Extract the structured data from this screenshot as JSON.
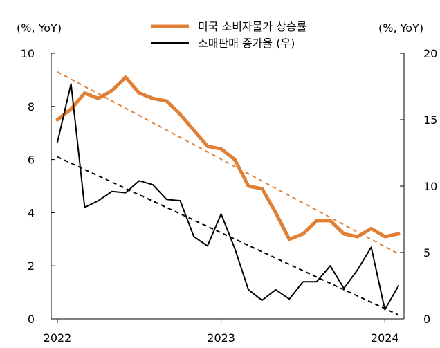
{
  "chart_data": {
    "type": "line",
    "left_unit_label": "(%, YoY)",
    "right_unit_label": "(%, YoY)",
    "y_left": {
      "min": 0,
      "max": 10,
      "ticks": [
        0,
        2,
        4,
        6,
        8,
        10
      ]
    },
    "y_right": {
      "min": 0,
      "max": 20,
      "ticks": [
        0,
        5,
        10,
        15,
        20
      ]
    },
    "x_ticks": [
      {
        "label": "2022",
        "month": "2022-01"
      },
      {
        "label": "2023",
        "month": "2023-01"
      },
      {
        "label": "2024",
        "month": "2024-01"
      }
    ],
    "x_months": [
      "2022-01",
      "2022-02",
      "2022-03",
      "2022-04",
      "2022-05",
      "2022-06",
      "2022-07",
      "2022-08",
      "2022-09",
      "2022-10",
      "2022-11",
      "2022-12",
      "2023-01",
      "2023-02",
      "2023-03",
      "2023-04",
      "2023-05",
      "2023-06",
      "2023-07",
      "2023-08",
      "2023-09",
      "2023-10",
      "2023-11",
      "2023-12",
      "2024-01",
      "2024-02"
    ],
    "legend_position": "top",
    "series": [
      {
        "name": "미국 소비자물가 상승률",
        "axis": "left",
        "color": "#E07F36",
        "values": [
          7.5,
          7.9,
          8.5,
          8.3,
          8.6,
          9.1,
          8.5,
          8.3,
          8.2,
          7.7,
          7.1,
          6.5,
          6.4,
          6.0,
          5.0,
          4.9,
          4.0,
          3.0,
          3.2,
          3.7,
          3.7,
          3.2,
          3.1,
          3.4,
          3.1,
          3.2
        ]
      },
      {
        "name": "소매판매 증가율 (우)",
        "axis": "right",
        "color": "#000000",
        "values": [
          13.3,
          17.7,
          8.4,
          8.9,
          9.6,
          9.5,
          10.4,
          10.1,
          9.0,
          8.9,
          6.2,
          5.5,
          7.9,
          5.3,
          2.2,
          1.4,
          2.2,
          1.5,
          2.8,
          2.8,
          4.0,
          2.3,
          3.7,
          5.4,
          0.7,
          2.5
        ]
      }
    ],
    "trendlines": [
      {
        "of_series": "미국 소비자물가 상승률",
        "axis": "left",
        "color": "#E07F36",
        "start": 9.3,
        "end": 2.45
      },
      {
        "of_series": "소매판매 증가율 (우)",
        "axis": "right",
        "color": "#000000",
        "start": 12.2,
        "end": 0.3
      }
    ]
  }
}
